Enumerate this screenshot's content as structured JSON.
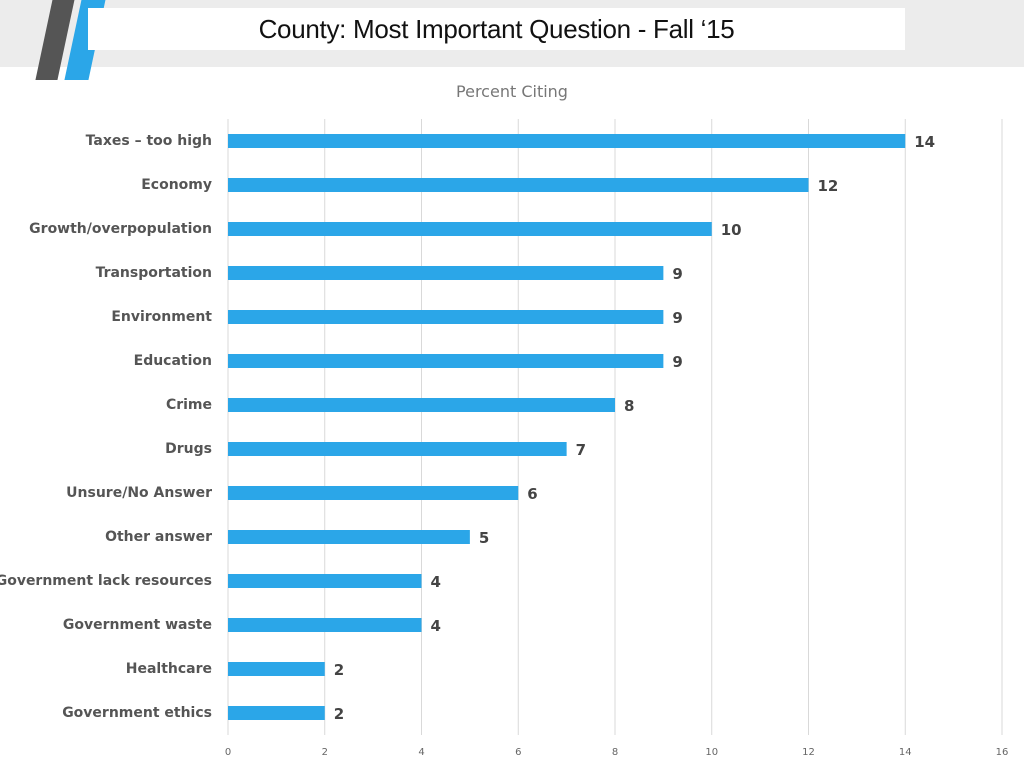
{
  "slide": {
    "title": "County: Most Important Question - Fall ‘15"
  },
  "colors": {
    "bar": "#2ba6e8",
    "accent_dark": "#555555",
    "accent_blue": "#2ba6e8",
    "grid": "#d9d9d9",
    "header_band": "#ececec"
  },
  "chart_data": {
    "type": "bar",
    "orientation": "horizontal",
    "title": "Percent Citing",
    "xlabel": "",
    "ylabel": "",
    "xlim": [
      0,
      16
    ],
    "x_ticks": [
      0,
      2,
      4,
      6,
      8,
      10,
      12,
      14,
      16
    ],
    "grid": true,
    "legend": "none",
    "categories": [
      "Taxes – too high",
      "Economy",
      "Growth/overpopulation",
      "Transportation",
      "Environment",
      "Education",
      "Crime",
      "Drugs",
      "Unsure/No Answer",
      "Other answer",
      "Government lack resources",
      "Government waste",
      "Healthcare",
      "Government ethics"
    ],
    "values": [
      14,
      12,
      10,
      9,
      9,
      9,
      8,
      7,
      6,
      5,
      4,
      4,
      2,
      2
    ],
    "value_labels": [
      "14",
      "12",
      "10",
      "9",
      "9",
      "9",
      "8",
      "7",
      "6",
      "5",
      "4",
      "4",
      "2",
      "2"
    ]
  }
}
